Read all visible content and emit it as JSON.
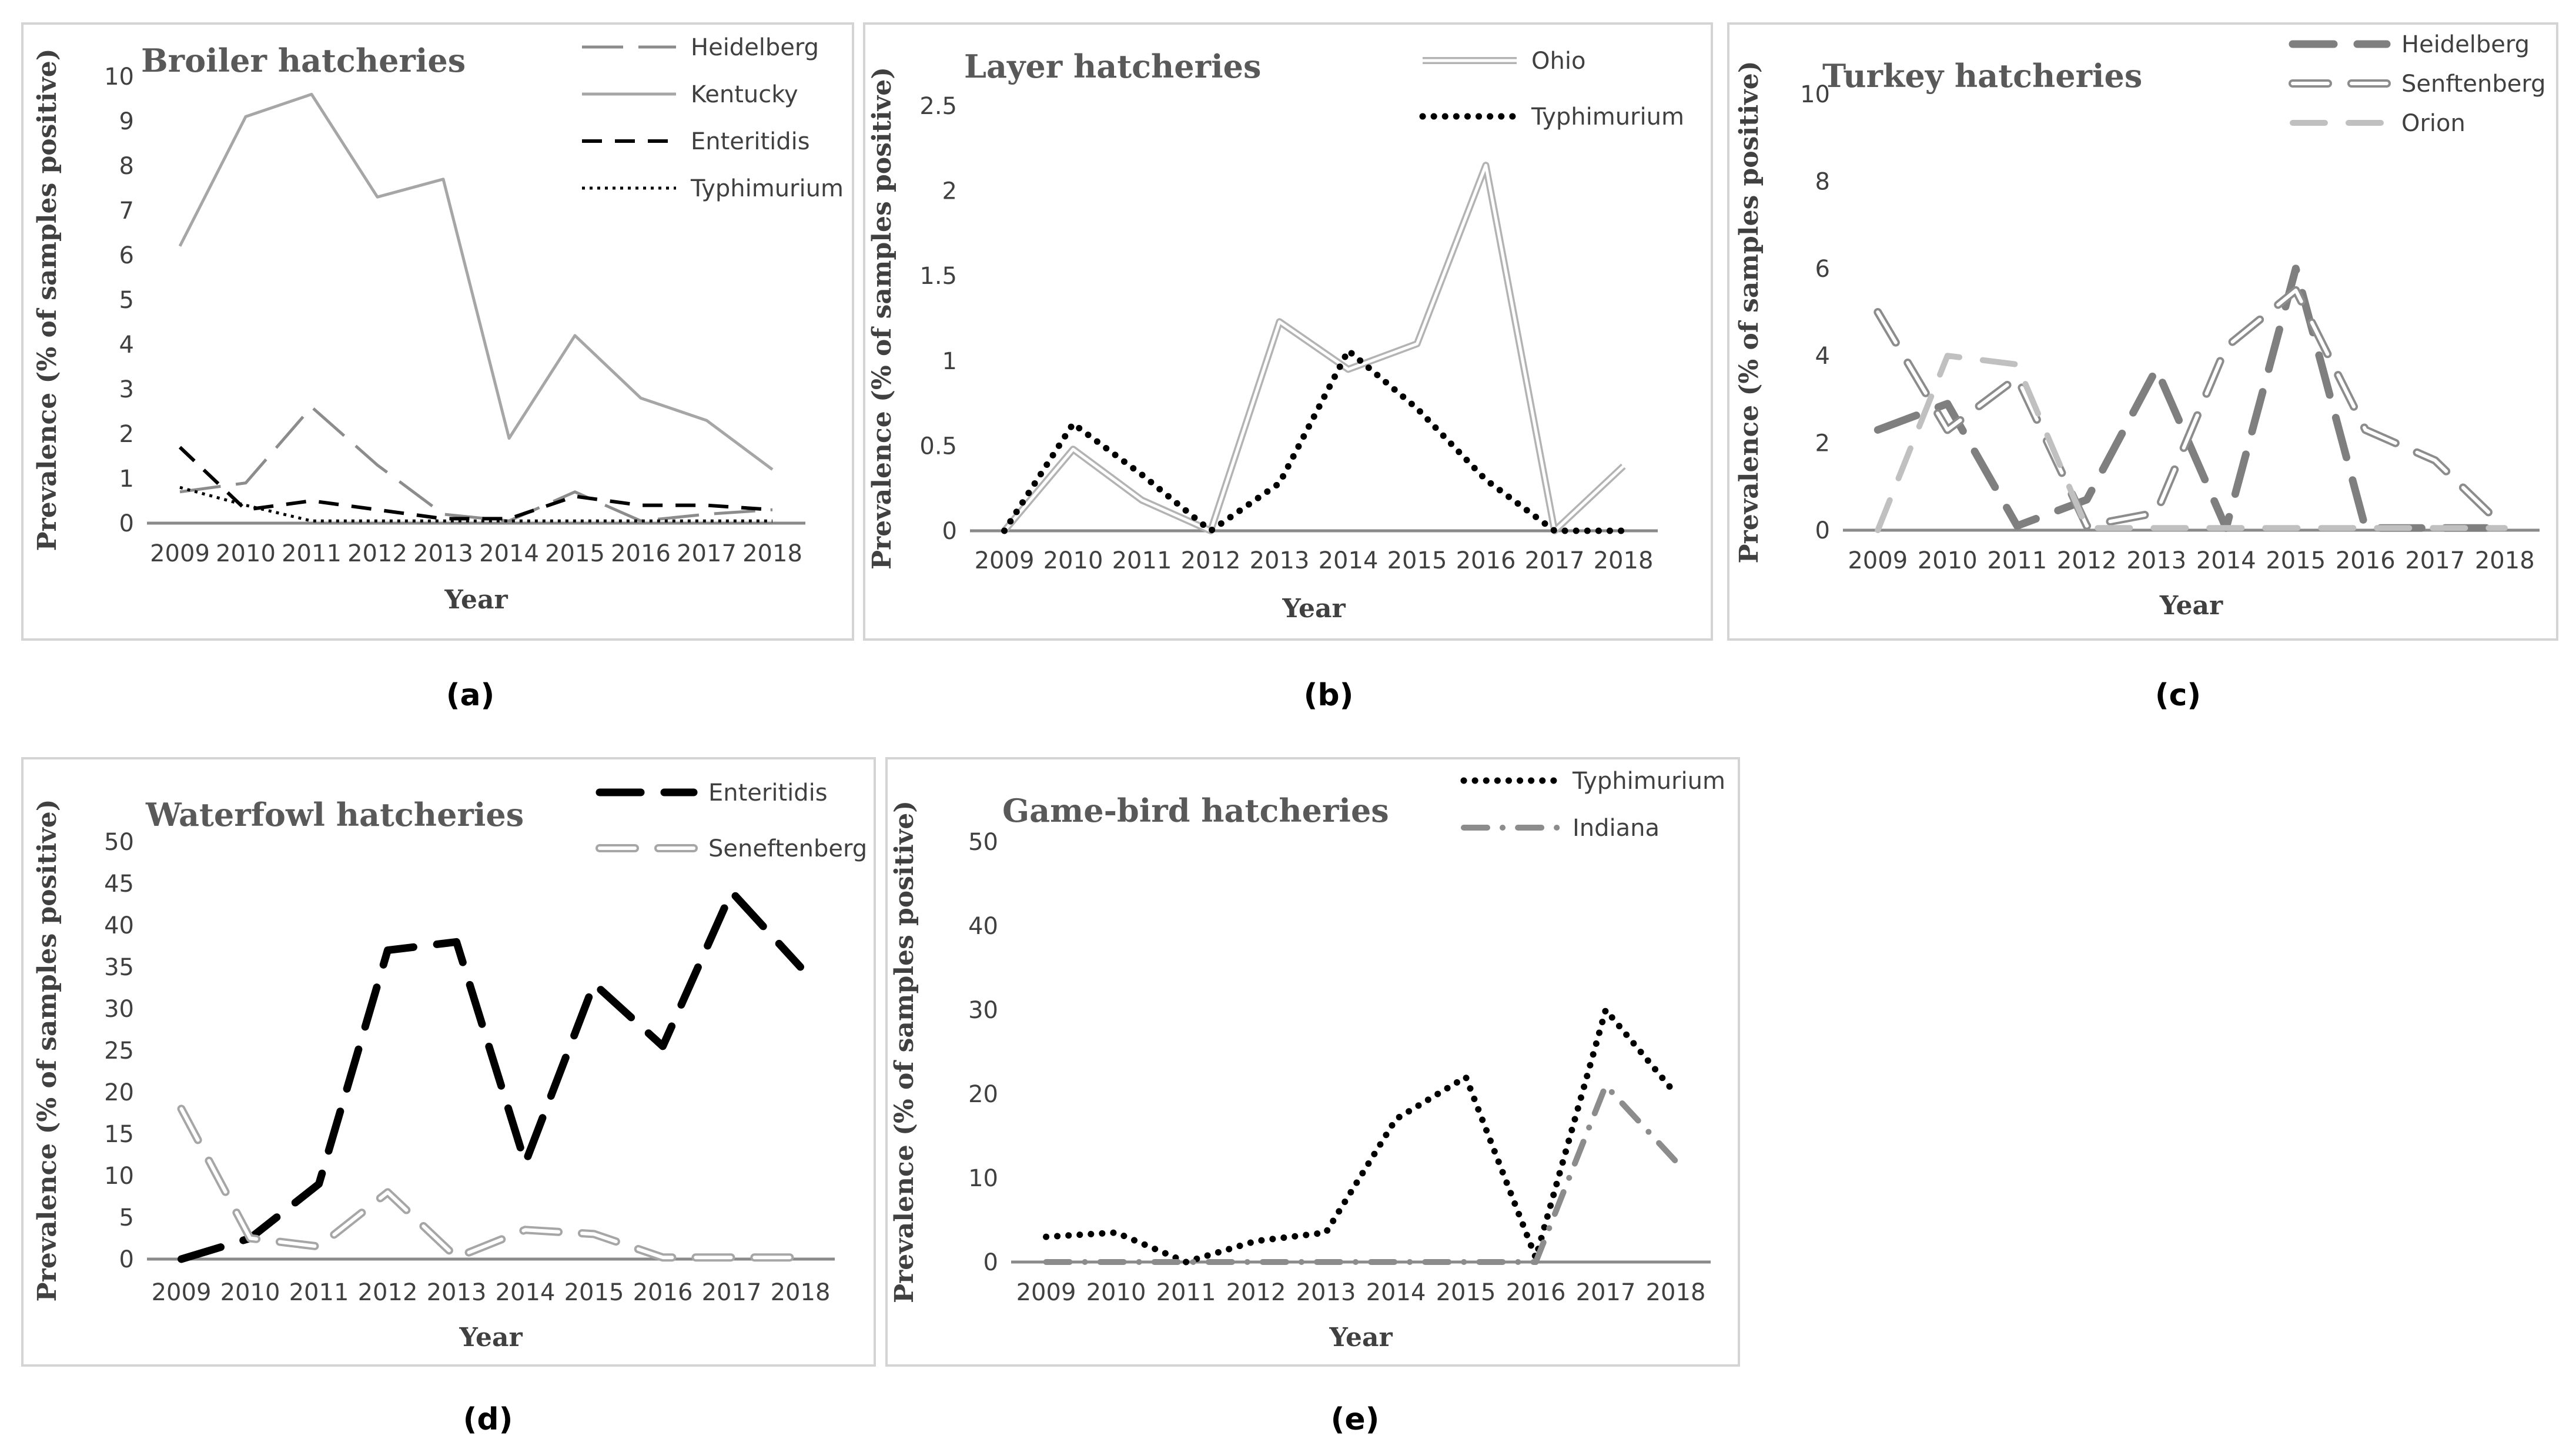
{
  "chart_data": [
    {
      "type": "line",
      "panel_label": "(a)",
      "title": "Broiler hatcheries",
      "xlabel": "Year",
      "ylabel": "Prevalence (% of samples positive)",
      "ylim": [
        0,
        10
      ],
      "yticks": [
        0,
        1,
        2,
        3,
        4,
        5,
        6,
        7,
        8,
        9,
        10
      ],
      "categories": [
        "2009",
        "2010",
        "2011",
        "2012",
        "2013",
        "2014",
        "2015",
        "2016",
        "2017",
        "2018"
      ],
      "legend_position": "top-right",
      "series": [
        {
          "name": "Heidelberg",
          "style": "longdash",
          "color": "#8c8c8c",
          "values": [
            0.7,
            0.9,
            2.6,
            1.3,
            0.2,
            0.05,
            0.7,
            0.05,
            0.2,
            0.3
          ]
        },
        {
          "name": "Kentucky",
          "style": "solid",
          "color": "#a6a6a6",
          "values": [
            6.2,
            9.1,
            9.6,
            7.3,
            7.7,
            1.9,
            4.2,
            2.8,
            2.3,
            1.2
          ]
        },
        {
          "name": "Enteritidis",
          "style": "dash",
          "color": "#000000",
          "values": [
            1.7,
            0.3,
            0.5,
            0.3,
            0.1,
            0.1,
            0.6,
            0.4,
            0.4,
            0.3
          ]
        },
        {
          "name": "Typhimurium",
          "style": "dot",
          "color": "#000000",
          "values": [
            0.8,
            0.4,
            0.05,
            0.05,
            0.05,
            0.05,
            0.05,
            0.05,
            0.05,
            0.05
          ]
        }
      ]
    },
    {
      "type": "line",
      "panel_label": "(b)",
      "title": "Layer hatcheries",
      "xlabel": "Year",
      "ylabel": "Prevalence (% of samples positive)",
      "ylim": [
        0,
        2.5
      ],
      "yticks": [
        0,
        0.5,
        1,
        1.5,
        2,
        2.5
      ],
      "ytick_labels": [
        "0",
        "0.5",
        "1",
        "1.5",
        "2",
        "2.5"
      ],
      "categories": [
        "2009",
        "2010",
        "2011",
        "2012",
        "2013",
        "2014",
        "2015",
        "2016",
        "2017",
        "2018"
      ],
      "legend_position": "top-right",
      "series": [
        {
          "name": "Ohio",
          "style": "double",
          "color": "#b3b3b3",
          "values": [
            0,
            0.48,
            0.18,
            0,
            1.23,
            0.95,
            1.1,
            2.15,
            0,
            0.38
          ]
        },
        {
          "name": "Typhimurium",
          "style": "heavydot",
          "color": "#000000",
          "values": [
            0,
            0.63,
            0.33,
            0,
            0.28,
            1.06,
            0.72,
            0.3,
            0,
            0
          ]
        }
      ]
    },
    {
      "type": "line",
      "panel_label": "(c)",
      "title": "Turkey hatcheries",
      "xlabel": "Year",
      "ylabel": "Prevalence (% of samples positive)",
      "ylim": [
        0,
        10
      ],
      "yticks": [
        0,
        2,
        4,
        6,
        8,
        10
      ],
      "categories": [
        "2009",
        "2010",
        "2011",
        "2012",
        "2013",
        "2014",
        "2015",
        "2016",
        "2017",
        "2018"
      ],
      "legend_position": "top-right",
      "series": [
        {
          "name": "Heidelberg",
          "style": "heavydash",
          "color": "#7f7f7f",
          "values": [
            2.3,
            2.9,
            0.1,
            0.7,
            3.7,
            0.05,
            6.0,
            0.05,
            0.05,
            0.05
          ]
        },
        {
          "name": "Senftenberg",
          "style": "doubledash",
          "color": "#8c8c8c",
          "values": [
            5.0,
            2.3,
            3.5,
            0.1,
            0.4,
            4.2,
            5.5,
            2.3,
            1.6,
            0.05
          ]
        },
        {
          "name": "Orion",
          "style": "lightdash",
          "color": "#c0c0c0",
          "values": [
            0,
            4.0,
            3.8,
            0.05,
            0.05,
            0.05,
            0.05,
            0.05,
            0.05,
            0.05
          ]
        }
      ]
    },
    {
      "type": "line",
      "panel_label": "(d)",
      "title": "Waterfowl hatcheries",
      "xlabel": "Year",
      "ylabel": "Prevalence (% of samples positive)",
      "ylim": [
        0,
        50
      ],
      "yticks": [
        0,
        5,
        10,
        15,
        20,
        25,
        30,
        35,
        40,
        45,
        50
      ],
      "categories": [
        "2009",
        "2010",
        "2011",
        "2012",
        "2013",
        "2014",
        "2015",
        "2016",
        "2017",
        "2018"
      ],
      "legend_position": "top-right",
      "series": [
        {
          "name": "Enteritidis",
          "style": "heavydash",
          "color": "#000000",
          "values": [
            0,
            2.5,
            9,
            37,
            38,
            11.5,
            33,
            25.5,
            44,
            35
          ]
        },
        {
          "name": "Seneftenberg",
          "style": "doubledash",
          "color": "#a6a6a6",
          "values": [
            18,
            2.5,
            1.5,
            8,
            0.2,
            3.5,
            3,
            0.2,
            0.2,
            0.2
          ]
        }
      ]
    },
    {
      "type": "line",
      "panel_label": "(e)",
      "title": "Game-bird hatcheries",
      "xlabel": "Year",
      "ylabel": "Prevalence (% of samples positive)",
      "ylim": [
        0,
        50
      ],
      "yticks": [
        0,
        10,
        20,
        30,
        40,
        50
      ],
      "categories": [
        "2009",
        "2010",
        "2011",
        "2012",
        "2013",
        "2014",
        "2015",
        "2016",
        "2017",
        "2018"
      ],
      "legend_position": "top-right",
      "series": [
        {
          "name": "Typhimurium",
          "style": "heavydot",
          "color": "#000000",
          "values": [
            3,
            3.5,
            0,
            2.5,
            3.5,
            17,
            22,
            0.5,
            30,
            20
          ]
        },
        {
          "name": "Indiana",
          "style": "dashdot",
          "color": "#8c8c8c",
          "values": [
            0,
            0,
            0,
            0,
            0,
            0,
            0,
            0,
            21,
            12
          ]
        }
      ]
    }
  ]
}
